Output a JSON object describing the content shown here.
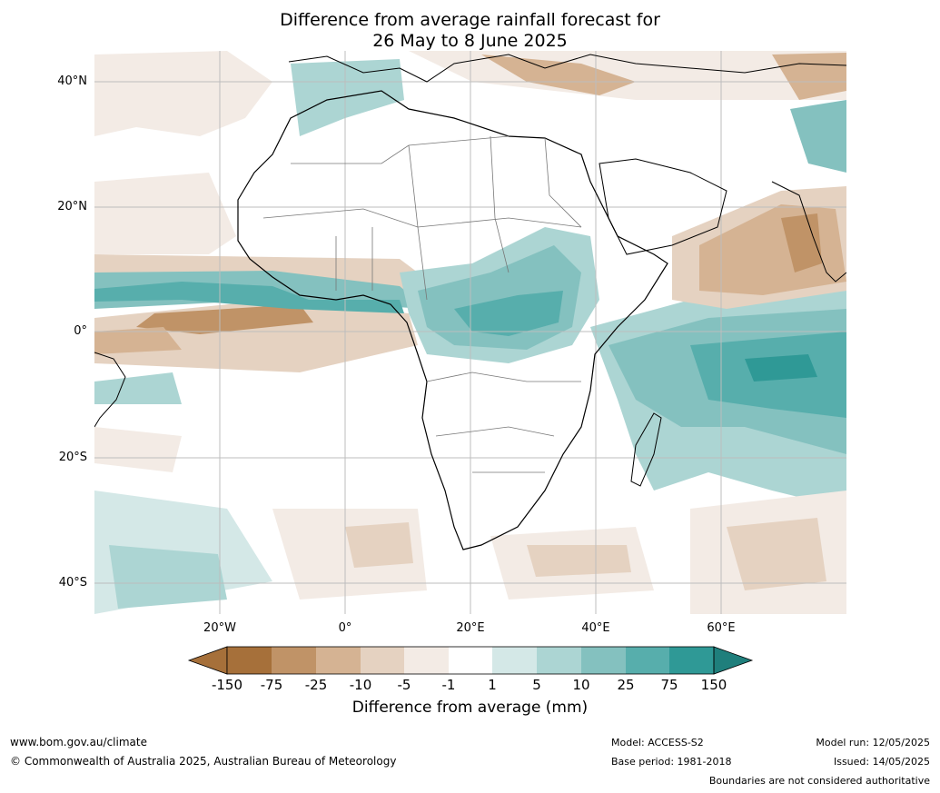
{
  "title": {
    "line1": "Difference from average rainfall forecast for",
    "line2": "26 May to 8 June 2025"
  },
  "map": {
    "lat_labels": [
      "40°N",
      "20°N",
      "0°",
      "20°S",
      "40°S"
    ],
    "lon_labels": [
      "20°W",
      "0°",
      "20°E",
      "40°E",
      "60°E"
    ],
    "region": "Africa"
  },
  "colorbar": {
    "label": "Difference from average (mm)",
    "ticks": [
      "-150",
      "-75",
      "-25",
      "-10",
      "-5",
      "-1",
      "1",
      "5",
      "10",
      "25",
      "75",
      "150"
    ],
    "colors": [
      "#a6703a",
      "#c09367",
      "#d5b393",
      "#e5d2c1",
      "#f3ebe5",
      "#ffffff",
      "#d4e8e7",
      "#acd5d3",
      "#84c1bf",
      "#57aeac",
      "#2f9996",
      "#1f7f7c"
    ]
  },
  "footer": {
    "url": "www.bom.gov.au/climate",
    "copyright": "© Commonwealth of Australia 2025, Australian Bureau of Meteorology",
    "model": "Model: ACCESS-S2",
    "base_period": "Base period: 1981-2018",
    "model_run": "Model run: 12/05/2025",
    "issued": "Issued: 14/05/2025",
    "disclaimer": "Boundaries are not considered authoritative"
  }
}
